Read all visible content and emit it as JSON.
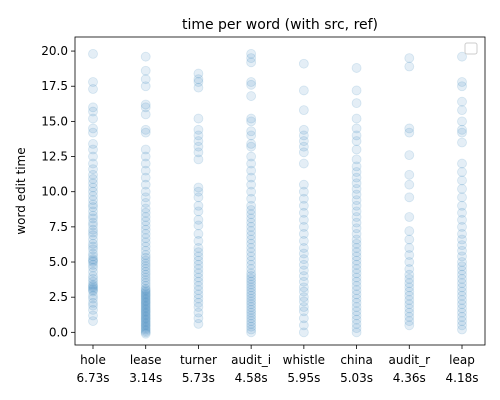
{
  "chart_data": {
    "type": "scatter",
    "title": "time per word (with src, ref)",
    "xlabel": "",
    "ylabel": "word edit time",
    "ylim": [
      -0.9,
      21.0
    ],
    "yticks": [
      0.0,
      2.5,
      5.0,
      7.5,
      10.0,
      12.5,
      15.0,
      17.5,
      20.0
    ],
    "ytick_labels": [
      "0.0",
      "2.5",
      "5.0",
      "7.5",
      "10.0",
      "12.5",
      "15.0",
      "17.5",
      "20.0"
    ],
    "categories": [
      {
        "name": "hole",
        "mean": "6.73s"
      },
      {
        "name": "lease",
        "mean": "3.14s"
      },
      {
        "name": "turner",
        "mean": "5.73s"
      },
      {
        "name": "audit_i",
        "mean": "4.58s"
      },
      {
        "name": "whistle",
        "mean": "5.95s"
      },
      {
        "name": "china",
        "mean": "5.03s"
      },
      {
        "name": "audit_r",
        "mean": "4.36s"
      },
      {
        "name": "leap",
        "mean": "4.18s"
      }
    ],
    "marker_color": "#1f77b4",
    "marker_alpha": 0.12,
    "legend": "upper right (empty)",
    "grid": false,
    "points": [
      [
        0.8,
        1.2,
        1.6,
        1.9,
        2.1,
        2.4,
        2.6,
        2.9,
        3.0,
        3.1,
        3.2,
        3.3,
        3.4,
        3.6,
        3.8,
        4.0,
        4.3,
        4.6,
        4.8,
        5.0,
        5.1,
        5.2,
        5.4,
        5.6,
        5.9,
        6.1,
        6.3,
        6.6,
        6.9,
        7.1,
        7.3,
        7.6,
        7.8,
        8.1,
        8.3,
        8.6,
        8.9,
        9.1,
        9.4,
        9.7,
        10.0,
        10.3,
        10.6,
        10.9,
        11.2,
        11.6,
        12.0,
        12.5,
        13.0,
        13.4,
        14.2,
        14.5,
        15.2,
        15.7,
        16.0,
        17.3,
        17.8,
        19.8
      ],
      [
        -0.1,
        0.0,
        0.1,
        0.2,
        0.3,
        0.4,
        0.5,
        0.6,
        0.7,
        0.8,
        0.9,
        1.0,
        1.1,
        1.2,
        1.3,
        1.4,
        1.5,
        1.6,
        1.7,
        1.8,
        1.9,
        2.0,
        2.1,
        2.2,
        2.3,
        2.4,
        2.5,
        2.6,
        2.7,
        2.8,
        2.9,
        3.0,
        3.1,
        3.3,
        3.5,
        3.7,
        3.9,
        4.1,
        4.3,
        4.5,
        4.7,
        4.9,
        5.1,
        5.3,
        5.5,
        5.8,
        6.1,
        6.4,
        6.7,
        7.0,
        7.3,
        7.6,
        7.9,
        8.2,
        8.5,
        8.8,
        9.2,
        9.6,
        10.0,
        10.5,
        11.0,
        11.5,
        12.0,
        12.5,
        13.0,
        14.2,
        14.4,
        15.5,
        16.0,
        16.2,
        17.5,
        18.0,
        18.6,
        19.6
      ],
      [
        0.6,
        1.0,
        1.4,
        1.8,
        2.1,
        2.4,
        2.7,
        3.0,
        3.3,
        3.6,
        3.9,
        4.2,
        4.5,
        4.8,
        5.1,
        5.4,
        5.7,
        6.0,
        6.5,
        7.0,
        7.6,
        8.0,
        8.6,
        9.0,
        9.6,
        10.0,
        10.3,
        12.3,
        12.8,
        13.2,
        13.6,
        14.0,
        14.4,
        15.2,
        17.4,
        17.8,
        18.0,
        18.4
      ],
      [
        0.0,
        0.2,
        0.4,
        0.6,
        0.8,
        1.0,
        1.2,
        1.4,
        1.6,
        1.8,
        2.0,
        2.2,
        2.4,
        2.6,
        2.8,
        3.0,
        3.2,
        3.4,
        3.6,
        3.8,
        4.0,
        4.2,
        4.5,
        4.8,
        5.1,
        5.4,
        5.7,
        6.0,
        6.3,
        6.6,
        6.9,
        7.2,
        7.5,
        7.8,
        8.1,
        8.4,
        8.7,
        9.0,
        9.5,
        10.0,
        10.5,
        11.0,
        11.5,
        12.0,
        12.5,
        13.2,
        13.4,
        14.0,
        14.3,
        15.0,
        15.2,
        16.8,
        17.6,
        17.8,
        19.2,
        19.5,
        19.8
      ],
      [
        0.0,
        0.5,
        1.0,
        1.5,
        1.8,
        2.2,
        2.5,
        2.9,
        3.2,
        3.6,
        4.0,
        4.4,
        4.8,
        5.2,
        5.6,
        6.0,
        6.5,
        7.0,
        7.5,
        8.0,
        8.5,
        9.0,
        9.5,
        10.0,
        10.5,
        12.0,
        12.8,
        13.2,
        13.6,
        14.0,
        14.4,
        15.8,
        17.2,
        19.1
      ],
      [
        0.0,
        0.3,
        0.6,
        0.9,
        1.2,
        1.5,
        1.8,
        2.1,
        2.4,
        2.7,
        3.0,
        3.3,
        3.6,
        3.9,
        4.2,
        4.5,
        4.8,
        5.1,
        5.4,
        5.7,
        6.0,
        6.3,
        6.6,
        7.0,
        7.4,
        7.8,
        8.2,
        8.6,
        9.0,
        9.4,
        9.8,
        10.2,
        10.6,
        11.0,
        11.4,
        11.8,
        12.3,
        13.0,
        13.6,
        14.0,
        14.5,
        15.2,
        16.3,
        17.2,
        18.8
      ],
      [
        0.5,
        0.8,
        1.1,
        1.4,
        1.7,
        2.0,
        2.3,
        2.6,
        2.9,
        3.2,
        3.5,
        3.8,
        4.1,
        4.5,
        5.0,
        5.5,
        6.0,
        6.6,
        7.2,
        8.2,
        9.6,
        10.5,
        11.2,
        12.6,
        14.2,
        14.5,
        18.9,
        19.5
      ],
      [
        0.2,
        0.5,
        0.8,
        1.1,
        1.4,
        1.7,
        2.0,
        2.3,
        2.6,
        2.9,
        3.2,
        3.5,
        3.8,
        4.1,
        4.4,
        4.7,
        5.0,
        5.4,
        5.8,
        6.2,
        6.6,
        7.0,
        7.5,
        8.0,
        8.5,
        9.0,
        9.6,
        10.2,
        10.8,
        11.4,
        12.0,
        13.5,
        14.2,
        14.4,
        15.0,
        15.8,
        16.4,
        17.5,
        17.8,
        19.6
      ]
    ]
  }
}
